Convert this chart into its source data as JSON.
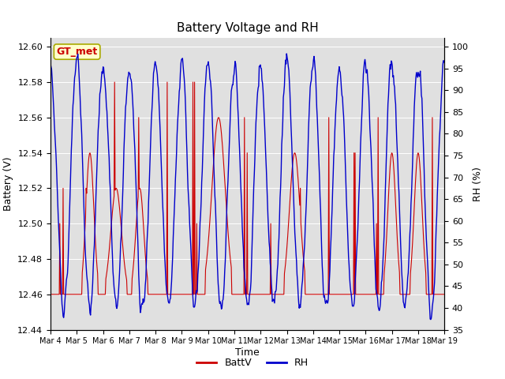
{
  "title": "Battery Voltage and RH",
  "xlabel": "Time",
  "ylabel_left": "Battery (V)",
  "ylabel_right": "RH (%)",
  "annotation": "GT_met",
  "ylim_left": [
    12.44,
    12.605
  ],
  "ylim_right": [
    35,
    102
  ],
  "yticks_left": [
    12.44,
    12.46,
    12.48,
    12.5,
    12.52,
    12.54,
    12.56,
    12.58,
    12.6
  ],
  "yticks_right": [
    35,
    40,
    45,
    50,
    55,
    60,
    65,
    70,
    75,
    80,
    85,
    90,
    95,
    100
  ],
  "xtick_labels": [
    "Mar 4",
    "Mar 5",
    "Mar 6",
    "Mar 7",
    "Mar 8",
    "Mar 9",
    "Mar 10",
    "Mar 11",
    "Mar 12",
    "Mar 13",
    "Mar 14",
    "Mar 15",
    "Mar 16",
    "Mar 17",
    "Mar 18",
    "Mar 19"
  ],
  "color_battv": "#cc0000",
  "color_rh": "#0000cc",
  "legend_labels": [
    "BattV",
    "RH"
  ],
  "bg_color": "#e0e0e0",
  "fig_bg": "#ffffff",
  "annotation_bg": "#ffffcc",
  "annotation_border": "#aaaa00",
  "annotation_text_color": "#cc0000",
  "n_days": 15,
  "figsize": [
    6.4,
    4.8
  ],
  "dpi": 100
}
